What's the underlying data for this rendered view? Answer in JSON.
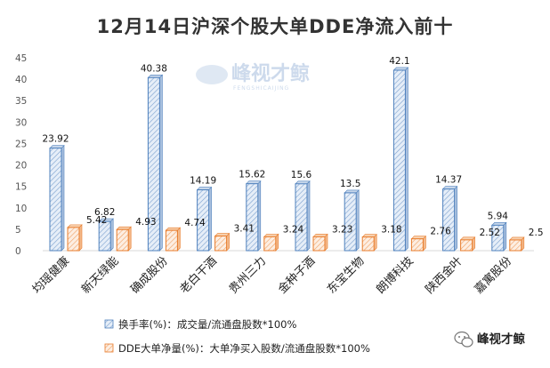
{
  "chart_data": {
    "type": "bar",
    "title": "12月14日沪深个股大单DDE净流入前十",
    "categories": [
      "均瑶健康",
      "新天绿能",
      "确成股份",
      "老白干酒",
      "贵州三力",
      "金种子酒",
      "东宝生物",
      "朗博科技",
      "陕西金叶",
      "嘉寓股份"
    ],
    "series": [
      {
        "name": "换手率(%)：成交量/流通盘股数*100%",
        "values": [
          23.92,
          6.82,
          40.38,
          14.19,
          15.62,
          15.6,
          13.5,
          42.1,
          14.37,
          5.94
        ],
        "color": "#4f81bd",
        "fill": "#dce6f2"
      },
      {
        "name": "DDE大单净量(%)：大单净买入股数/流通盘股数*100%",
        "values": [
          5.42,
          4.93,
          4.74,
          3.41,
          3.24,
          3.23,
          3.18,
          2.76,
          2.52,
          2.5
        ],
        "color": "#e87c2c",
        "fill": "#fbe3cf"
      }
    ],
    "ylim": [
      0,
      45
    ],
    "yticks": [
      0,
      5,
      10,
      15,
      20,
      25,
      30,
      35,
      40,
      45
    ],
    "grid": false,
    "legend_position": "bottom-left"
  },
  "watermark": {
    "text": "峰视才鲸",
    "sub": "FENGSHICAIJING"
  },
  "brand": {
    "text": "峰视才鲸",
    "icon": "wechat-icon"
  }
}
